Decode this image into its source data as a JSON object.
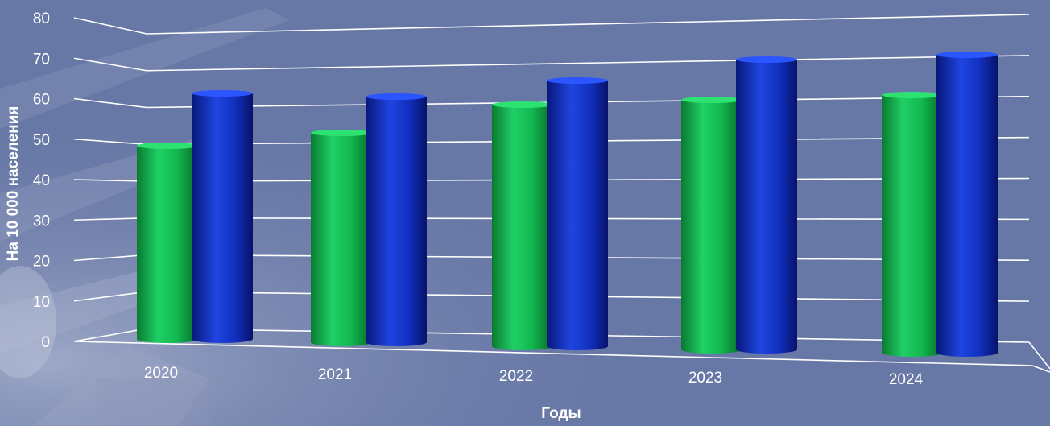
{
  "chart_data": {
    "type": "bar",
    "title": "",
    "xlabel": "Годы",
    "ylabel": "На 10 000 населения",
    "categories": [
      "2020",
      "2021",
      "2022",
      "2023",
      "2024"
    ],
    "series": [
      {
        "values": [
          48,
          52,
          60,
          62,
          64
        ]
      },
      {
        "values": [
          61,
          61,
          66,
          72,
          74
        ]
      }
    ],
    "yticks": [
      "0",
      "10",
      "20",
      "30",
      "40",
      "50",
      "60",
      "70",
      "80"
    ],
    "ylim": [
      0,
      80
    ],
    "grid": true,
    "legend": "none",
    "colors": {
      "series_1": "#16b84f",
      "series_2": "#1232c2",
      "background": "#6878a6",
      "grid": "#ffffff"
    }
  }
}
